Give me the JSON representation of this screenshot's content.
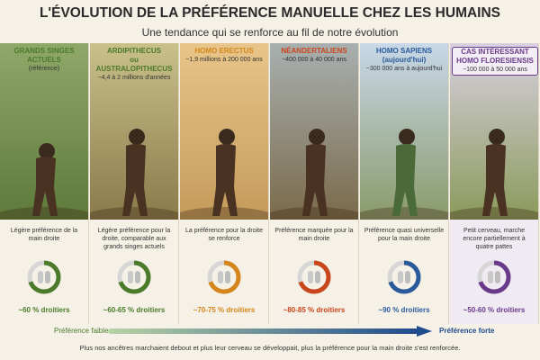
{
  "header": {
    "title": "L'ÉVOLUTION DE LA PRÉFÉRENCE MANUELLE CHEZ LES HUMAINS",
    "subtitle": "Une tendance qui se renforce au fil de notre évolution"
  },
  "columns": [
    {
      "heading": [
        "GRANDS SINGES ACTUELS"
      ],
      "period": [
        "(référence)"
      ],
      "description": "Légère préférence de la main droite",
      "share": "~60 % droitiers",
      "color": "#4a7a2a"
    },
    {
      "heading": [
        "ARDIPITHECUS",
        "ou",
        "AUSTRALOPITHECUS"
      ],
      "period": [
        "~4,4 à 2 millions d'années"
      ],
      "description": "Légère préférence pour la droite, comparable aux grands singes actuels",
      "share": "~60-65 % droitiers",
      "color": "#4a7a2a"
    },
    {
      "heading": [
        "HOMO ERECTUS"
      ],
      "period": [
        "~1,9 millions à 200 000 ans"
      ],
      "description": "La préférence pour la droite se renforce",
      "share": "~70-75 % droitiers",
      "color": "#d4861a"
    },
    {
      "heading": [
        "NÉANDERTALIENS"
      ],
      "period": [
        "~400 000 à 40 000 ans"
      ],
      "description": "Préférence marquée pour la main droite",
      "share": "~80-85 % droitiers",
      "color": "#c9461c"
    },
    {
      "heading": [
        "HOMO SAPIENS",
        "(aujourd'hui)"
      ],
      "period": [
        "~300 000 ans à aujourd'hui"
      ],
      "description": "Préférence quasi universelle pour la main droite",
      "share": "~90 % droitiers",
      "color": "#2a5a9a"
    },
    {
      "heading": [
        "CAS INTÉRESSANT",
        "HOMO FLORESIENSIS"
      ],
      "period": [
        "~100 000 à 50 000 ans"
      ],
      "description": "Petit cerveau, marche encore partiellement à quatre pattes",
      "share": "~50-60 % droitiers",
      "color": "#6a3a8a"
    }
  ],
  "scale": {
    "left": "Préférence faible",
    "right": "Préférence forte"
  },
  "footer": "Plus nos ancêtres marchaient debout et plus leur cerveau se développait, plus la préférence pour la main droite s'est renforcée."
}
